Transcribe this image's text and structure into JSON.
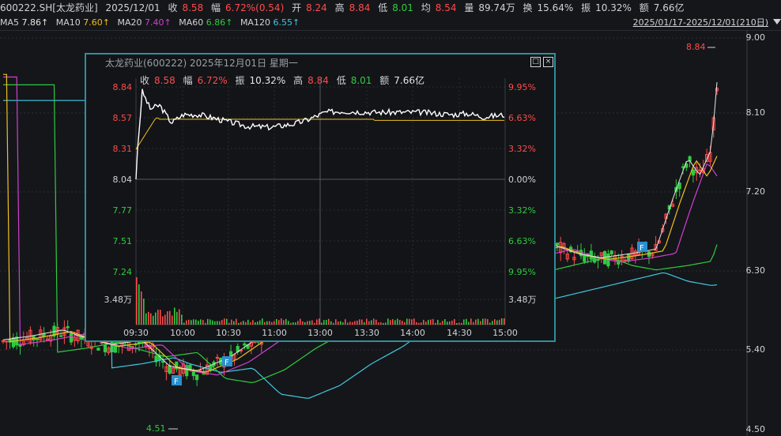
{
  "header": {
    "symbol": "600222.SH[太龙药业]",
    "date": "2025/12/01",
    "close_label": "收",
    "close": "8.58",
    "chg_label": "幅",
    "chg": "6.72%(0.54)",
    "open_label": "开",
    "open": "8.24",
    "high_label": "高",
    "high": "8.84",
    "low_label": "低",
    "low": "8.01",
    "avg_label": "均",
    "avg": "8.54",
    "vol_label": "量",
    "vol": "89.74万",
    "turn_label": "换",
    "turn": "15.64%",
    "amp_label": "振",
    "amp": "10.32%",
    "amt_label": "额",
    "amt": "7.66亿"
  },
  "ma": [
    {
      "label": "MA5",
      "value": "7.86↑"
    },
    {
      "label": "MA10",
      "value": "7.60↑"
    },
    {
      "label": "MA20",
      "value": "7.40↑"
    },
    {
      "label": "MA60",
      "value": "6.86↑"
    },
    {
      "label": "MA120",
      "value": "6.55↑"
    }
  ],
  "range": "2025/01/17-2025/12/01(210日)",
  "kline": {
    "price_ticks": [
      "9.00",
      "8.10",
      "7.20",
      "6.30",
      "5.40",
      "4.50"
    ],
    "high_mark": "8.84",
    "low_mark": "4.51",
    "f_badge": "F"
  },
  "popup": {
    "title": "太龙药业(600222) 2025年12月01日 星期一",
    "restore_icon": "□",
    "close_icon": "×",
    "close_label": "收",
    "close": "8.58",
    "chg_label": "幅",
    "chg": "6.72%",
    "amp_label": "振",
    "amp": "10.32%",
    "high_label": "高",
    "high": "8.84",
    "low_label": "低",
    "low": "8.01",
    "amt_label": "额",
    "amt": "7.66亿",
    "left_ticks": [
      "8.84",
      "8.57",
      "8.31",
      "8.04",
      "7.77",
      "7.51",
      "7.24"
    ],
    "right_ticks": [
      "9.95%",
      "6.63%",
      "3.32%",
      "0.00%",
      "3.32%",
      "6.63%",
      "9.95%"
    ],
    "vol_tick": "3.48万",
    "time_ticks": [
      "09:30",
      "10:00",
      "10:30",
      "11:00",
      "13:00",
      "13:30",
      "14:00",
      "14:30",
      "15:00"
    ]
  },
  "colors": {
    "up": "#ff4b4b",
    "down": "#2ecc40",
    "ma5": "#e6e6e6",
    "ma10": "#f0c020",
    "ma20": "#d040d0",
    "ma60": "#2ecc40",
    "ma120": "#40c8e0",
    "border": "#2f8f9a"
  }
}
